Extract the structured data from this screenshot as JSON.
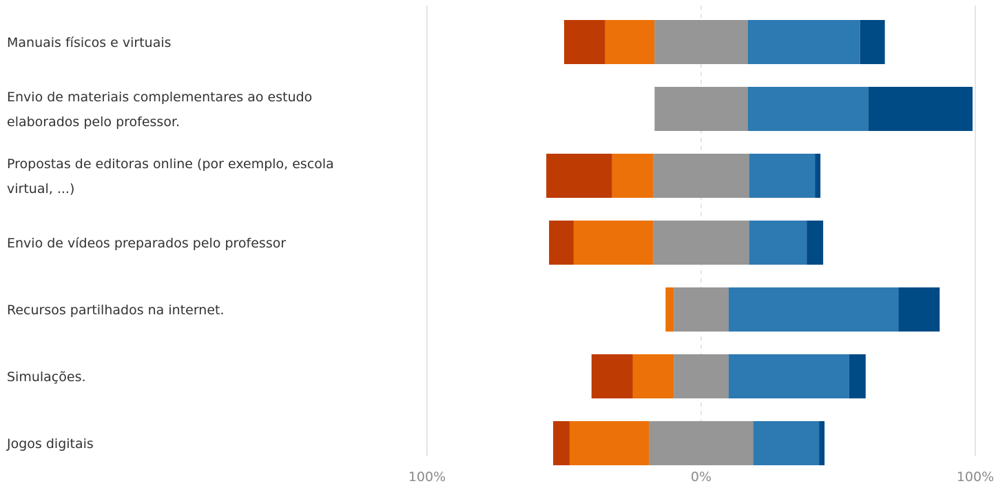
{
  "chart_data": {
    "type": "bar",
    "subtype": "diverging-stacked-horizontal",
    "title": "",
    "xlabel": "",
    "ylabel": "",
    "xlim": [
      -100,
      100
    ],
    "x_ticks": [
      "100%",
      "0%",
      "100%"
    ],
    "grid": true,
    "legend": "none",
    "categories": [
      "Manuais físicos e virtuais",
      "Envio de materiais complementares ao estudo elaborados pelo professor.",
      "Propostas de editoras online (por exemplo, escola virtual, ...)",
      "Envio de vídeos preparados pelo professor",
      "Recursos partilhados na internet.",
      "Simulações.",
      "Jogos digitais"
    ],
    "category_lines": [
      [
        "Manuais físicos e virtuais"
      ],
      [
        "Envio de materiais complementares ao estudo",
        "elaborados pelo professor."
      ],
      [
        "Propostas de editoras online (por exemplo, escola",
        "virtual, ...)"
      ],
      [
        "Envio de vídeos preparados pelo professor"
      ],
      [
        "Recursos partilhados na internet."
      ],
      [
        "Simulações."
      ],
      [
        "Jogos digitais"
      ]
    ],
    "series": [
      {
        "color": "#bf3b04",
        "values": [
          15,
          0,
          24,
          9,
          0,
          15,
          6
        ]
      },
      {
        "color": "#ec7108",
        "values": [
          18,
          0,
          15,
          29,
          3,
          15,
          29
        ]
      },
      {
        "color": "#969696",
        "values": [
          34,
          34,
          35,
          35,
          20,
          20,
          38
        ]
      },
      {
        "color": "#2d79b2",
        "values": [
          41,
          44,
          24,
          21,
          62,
          44,
          24
        ]
      },
      {
        "color": "#004a85",
        "values": [
          9,
          38,
          2,
          6,
          15,
          6,
          2
        ]
      }
    ]
  }
}
